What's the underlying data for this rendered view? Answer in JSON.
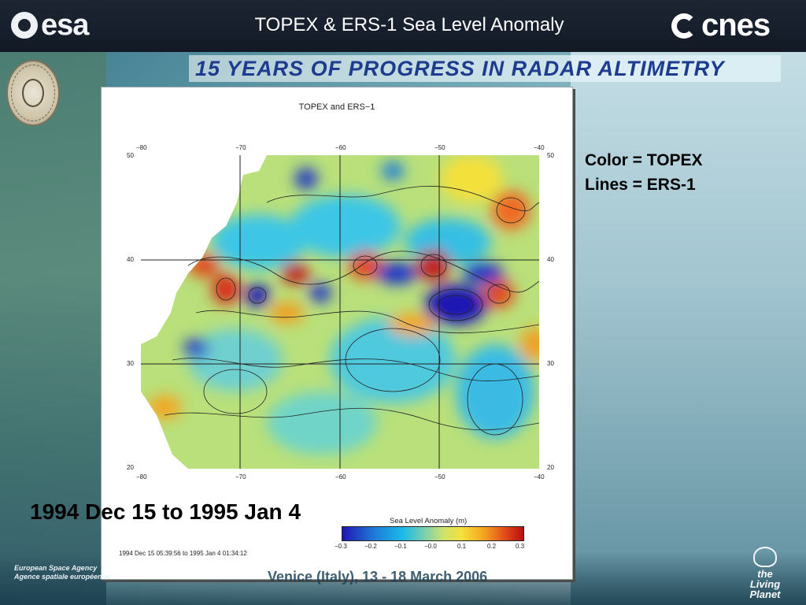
{
  "header": {
    "title": "TOPEX  & ERS-1 Sea Level Anomaly",
    "left_logo": "esa",
    "right_logo": "cnes"
  },
  "banner": {
    "text": "15 YEARS OF PROGRESS IN RADAR ALTIMETRY"
  },
  "seal": {
    "text": "THE JOHNS HOPKINS UNIVERSITY"
  },
  "figure": {
    "title": "TOPEX and ERS−1",
    "lon_ticks": [
      "−80",
      "−70",
      "−60",
      "−50",
      "−40"
    ],
    "lat_ticks": [
      "50",
      "40",
      "30",
      "20"
    ],
    "colorbar_title": "Sea Level Anomaly (m)",
    "colorbar_ticks": [
      "−0.3",
      "−0.2",
      "−0.1",
      "−0.0",
      "0.1",
      "0.2",
      "0.3"
    ],
    "date_range": "1994 Dec 15 05:39:56 to 1995 Jan  4 01:34:12"
  },
  "legend": {
    "color_line": "Color = TOPEX",
    "lines_line": "Lines = ERS-1"
  },
  "caption": "1994 Dec 15 to 1995 Jan 4",
  "footer": {
    "agency_line1": "European Space Agency",
    "agency_line2": "Agence spatiale européenne",
    "venue": "Venice (Italy), 13 - 18 March 2006",
    "living_planet_line1": "the",
    "living_planet_line2": "Living Planet"
  },
  "colors": {
    "header_bg": "#161d2a",
    "banner_text": "#1d3c8f",
    "anomaly_low": "#1f16b4",
    "anomaly_high": "#b80f0f"
  }
}
